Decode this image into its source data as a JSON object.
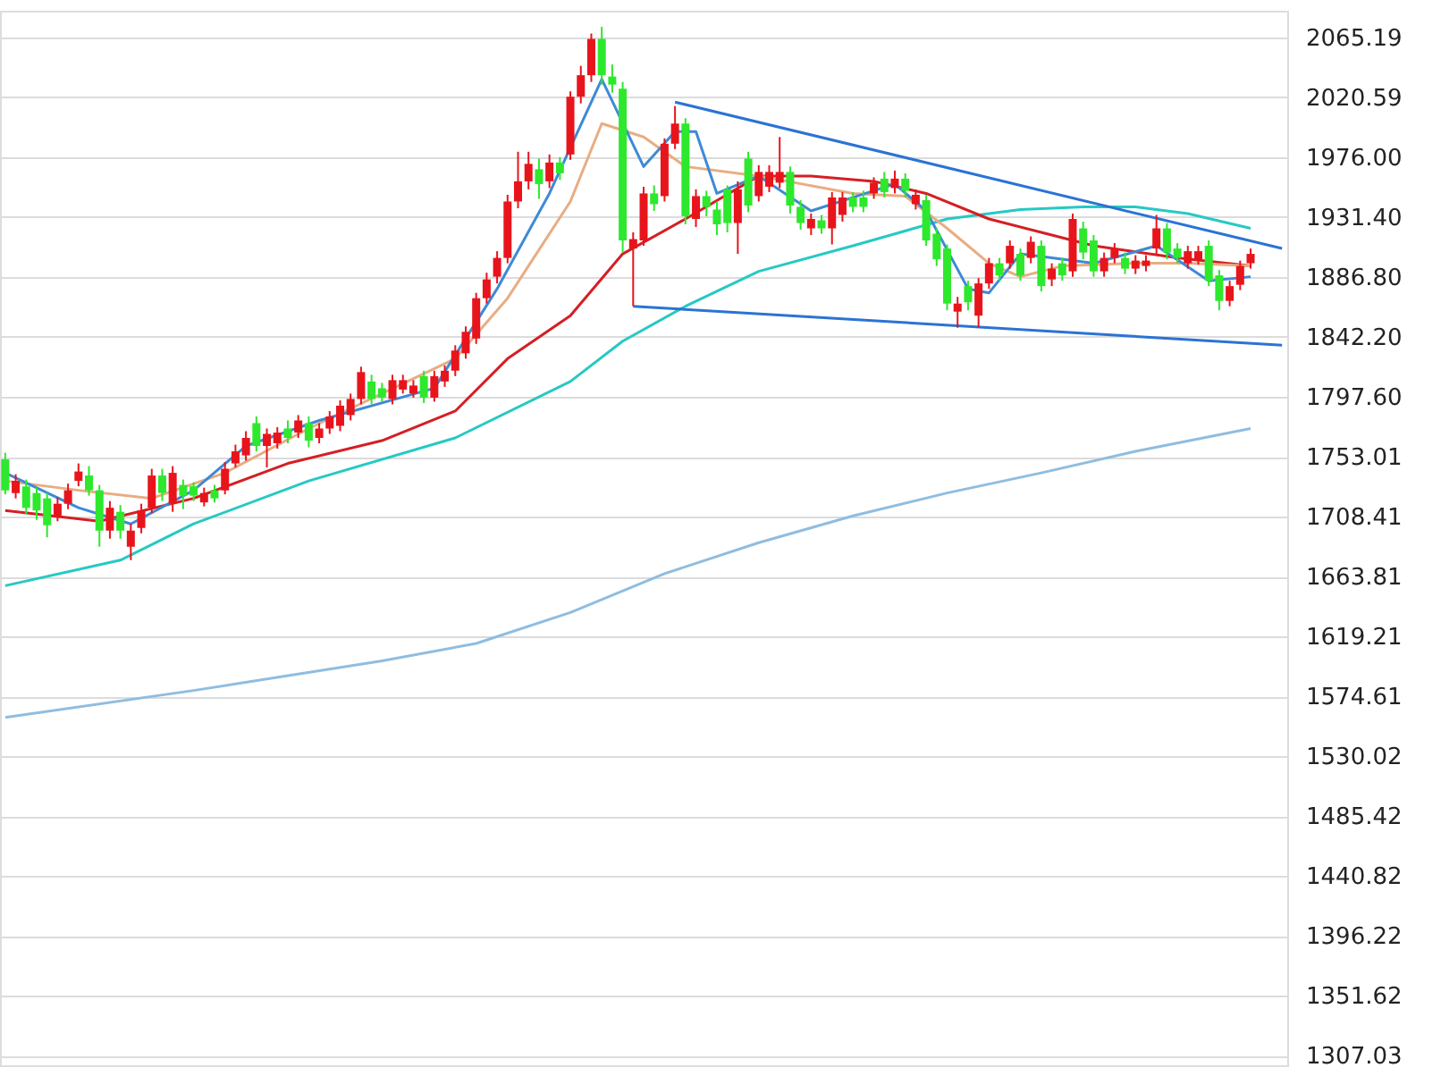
{
  "chart_data": {
    "type": "candlestick",
    "categories": [
      null,
      null,
      null,
      null,
      null,
      null,
      null,
      null,
      null,
      null,
      null,
      null,
      null,
      null,
      null,
      null,
      null,
      null,
      null,
      null,
      null,
      null,
      null,
      null,
      null,
      null,
      null,
      null,
      null,
      null,
      null,
      null,
      null,
      null,
      null,
      null,
      null,
      null,
      null,
      null,
      null,
      null,
      null,
      null,
      null,
      null,
      null,
      null,
      null,
      null,
      null,
      null,
      null,
      null,
      null,
      null,
      null,
      null,
      null,
      null,
      null,
      null,
      null,
      null,
      null,
      null,
      null,
      null,
      null,
      null,
      null,
      null,
      null,
      null,
      null,
      null,
      null,
      null,
      null,
      null,
      null,
      null,
      null,
      null,
      null,
      null,
      null,
      null,
      null,
      null,
      null,
      null,
      null,
      null,
      null,
      null,
      null,
      null,
      null,
      null,
      null,
      null,
      null,
      null,
      null,
      null,
      null,
      null,
      null,
      null,
      null,
      null,
      null,
      null,
      null,
      null,
      null,
      null,
      null,
      null,
      null,
      null,
      null
    ],
    "ohlc": [
      [
        1751,
        1756,
        1725,
        1728
      ],
      [
        1726,
        1740,
        1722,
        1735
      ],
      [
        1731,
        1736,
        1710,
        1715
      ],
      [
        1726,
        1730,
        1706,
        1713
      ],
      [
        1722,
        1726,
        1693,
        1702
      ],
      [
        1709,
        1723,
        1705,
        1718
      ],
      [
        1718,
        1733,
        1714,
        1728
      ],
      [
        1735,
        1748,
        1731,
        1742
      ],
      [
        1739,
        1746,
        1724,
        1728
      ],
      [
        1728,
        1732,
        1686,
        1698
      ],
      [
        1698,
        1720,
        1692,
        1715
      ],
      [
        1712,
        1717,
        1692,
        1698
      ],
      [
        1686,
        1703,
        1676,
        1698
      ],
      [
        1700,
        1718,
        1696,
        1713
      ],
      [
        1715,
        1744,
        1711,
        1739
      ],
      [
        1739,
        1744,
        1720,
        1726
      ],
      [
        1718,
        1746,
        1712,
        1741
      ],
      [
        1732,
        1736,
        1714,
        1724
      ],
      [
        1731,
        1734,
        1720,
        1724
      ],
      [
        1719,
        1730,
        1716,
        1726
      ],
      [
        1728,
        1732,
        1719,
        1722
      ],
      [
        1728,
        1749,
        1725,
        1744
      ],
      [
        1748,
        1762,
        1745,
        1757
      ],
      [
        1754,
        1772,
        1750,
        1767
      ],
      [
        1778,
        1783,
        1757,
        1761
      ],
      [
        1761,
        1774,
        1745,
        1770
      ],
      [
        1763,
        1775,
        1759,
        1771
      ],
      [
        1774,
        1780,
        1763,
        1767
      ],
      [
        1771,
        1784,
        1767,
        1780
      ],
      [
        1778,
        1783,
        1760,
        1765
      ],
      [
        1767,
        1778,
        1763,
        1774
      ],
      [
        1774,
        1787,
        1770,
        1783
      ],
      [
        1776,
        1795,
        1772,
        1791
      ],
      [
        1784,
        1800,
        1780,
        1796
      ],
      [
        1796,
        1820,
        1792,
        1816
      ],
      [
        1809,
        1814,
        1792,
        1796
      ],
      [
        1804,
        1808,
        1794,
        1797
      ],
      [
        1796,
        1814,
        1792,
        1810
      ],
      [
        1803,
        1814,
        1800,
        1810
      ],
      [
        1800,
        1810,
        1797,
        1806
      ],
      [
        1813,
        1817,
        1793,
        1797
      ],
      [
        1797,
        1817,
        1794,
        1813
      ],
      [
        1809,
        1821,
        1805,
        1817
      ],
      [
        1817,
        1836,
        1813,
        1832
      ],
      [
        1830,
        1850,
        1826,
        1846
      ],
      [
        1841,
        1875,
        1837,
        1871
      ],
      [
        1871,
        1890,
        1867,
        1885
      ],
      [
        1887,
        1906,
        1882,
        1901
      ],
      [
        1901,
        1948,
        1897,
        1943
      ],
      [
        1943,
        1980,
        1938,
        1958
      ],
      [
        1958,
        1980,
        1952,
        1971
      ],
      [
        1967,
        1975,
        1945,
        1956
      ],
      [
        1958,
        1978,
        1953,
        1972
      ],
      [
        1972,
        1976,
        1959,
        1964
      ],
      [
        1978,
        2025,
        1974,
        2021
      ],
      [
        2021,
        2044,
        2016,
        2037
      ],
      [
        2037,
        2068,
        2032,
        2064
      ],
      [
        2064,
        2073,
        2030,
        2037
      ],
      [
        2036,
        2045,
        2024,
        2030
      ],
      [
        2027,
        2032,
        1905,
        1914
      ],
      [
        1908,
        1920,
        1865,
        1915
      ],
      [
        1914,
        1954,
        1910,
        1949
      ],
      [
        1949,
        1955,
        1936,
        1941
      ],
      [
        1947,
        1990,
        1943,
        1986
      ],
      [
        1986,
        2014,
        1982,
        2001
      ],
      [
        2001,
        2005,
        1926,
        1932
      ],
      [
        1930,
        1952,
        1924,
        1947
      ],
      [
        1947,
        1951,
        1932,
        1939
      ],
      [
        1937,
        1943,
        1918,
        1926
      ],
      [
        1952,
        1955,
        1920,
        1927
      ],
      [
        1927,
        1958,
        1904,
        1952
      ],
      [
        1975,
        1980,
        1935,
        1940
      ],
      [
        1947,
        1970,
        1943,
        1965
      ],
      [
        1954,
        1970,
        1950,
        1965
      ],
      [
        1957,
        1991,
        1953,
        1965
      ],
      [
        1965,
        1969,
        1934,
        1940
      ],
      [
        1939,
        1944,
        1922,
        1927
      ],
      [
        1923,
        1934,
        1918,
        1930
      ],
      [
        1929,
        1933,
        1919,
        1923
      ],
      [
        1923,
        1950,
        1911,
        1946
      ],
      [
        1933,
        1950,
        1928,
        1946
      ],
      [
        1946,
        1950,
        1935,
        1939
      ],
      [
        1946,
        1951,
        1935,
        1939
      ],
      [
        1949,
        1961,
        1945,
        1957
      ],
      [
        1960,
        1965,
        1946,
        1950
      ],
      [
        1953,
        1966,
        1949,
        1960
      ],
      [
        1960,
        1964,
        1946,
        1951
      ],
      [
        1941,
        1952,
        1937,
        1948
      ],
      [
        1944,
        1948,
        1910,
        1914
      ],
      [
        1919,
        1923,
        1895,
        1900
      ],
      [
        1908,
        1911,
        1862,
        1867
      ],
      [
        1861,
        1872,
        1849,
        1867
      ],
      [
        1880,
        1884,
        1862,
        1868
      ],
      [
        1858,
        1886,
        1849,
        1882
      ],
      [
        1882,
        1901,
        1878,
        1897
      ],
      [
        1897,
        1901,
        1884,
        1888
      ],
      [
        1897,
        1914,
        1893,
        1910
      ],
      [
        1904,
        1908,
        1884,
        1888
      ],
      [
        1901,
        1917,
        1897,
        1913
      ],
      [
        1910,
        1914,
        1876,
        1880
      ],
      [
        1885,
        1897,
        1880,
        1893
      ],
      [
        1897,
        1901,
        1884,
        1888
      ],
      [
        1891,
        1934,
        1887,
        1930
      ],
      [
        1923,
        1928,
        1900,
        1905
      ],
      [
        1914,
        1918,
        1887,
        1891
      ],
      [
        1891,
        1905,
        1887,
        1901
      ],
      [
        1901,
        1912,
        1897,
        1908
      ],
      [
        1901,
        1905,
        1889,
        1893
      ],
      [
        1893,
        1903,
        1889,
        1899
      ],
      [
        1895,
        1903,
        1891,
        1899
      ],
      [
        1908,
        1933,
        1904,
        1923
      ],
      [
        1923,
        1927,
        1900,
        1905
      ],
      [
        1908,
        1912,
        1897,
        1901
      ],
      [
        1897,
        1910,
        1893,
        1906
      ],
      [
        1900,
        1910,
        1896,
        1906
      ],
      [
        1910,
        1914,
        1880,
        1884
      ],
      [
        1888,
        1892,
        1862,
        1869
      ],
      [
        1869,
        1884,
        1865,
        1880
      ],
      [
        1881,
        1899,
        1877,
        1895
      ],
      [
        1897,
        1908,
        1893,
        1904
      ],
      null,
      null,
      null
    ],
    "colors": [
      "#2de82d",
      "#e8141c",
      "#2de82d",
      "#2de82d",
      "#2de82d",
      "#e8141c",
      "#e8141c",
      "#e8141c",
      "#2de82d",
      "#2de82d",
      "#e8141c",
      "#2de82d",
      "#e8141c",
      "#e8141c",
      "#e8141c",
      "#2de82d",
      "#e8141c",
      "#2de82d",
      "#2de82d",
      "#e8141c",
      "#2de82d",
      "#e8141c",
      "#e8141c",
      "#e8141c",
      "#2de82d",
      "#e8141c",
      "#e8141c",
      "#2de82d",
      "#e8141c",
      "#2de82d",
      "#e8141c",
      "#e8141c",
      "#e8141c",
      "#e8141c",
      "#e8141c",
      "#2de82d",
      "#2de82d",
      "#e8141c",
      "#e8141c",
      "#e8141c",
      "#2de82d",
      "#e8141c",
      "#e8141c",
      "#e8141c",
      "#e8141c",
      "#e8141c",
      "#e8141c",
      "#e8141c",
      "#e8141c",
      "#e8141c",
      "#e8141c",
      "#2de82d",
      "#e8141c",
      "#2de82d",
      "#e8141c",
      "#e8141c",
      "#e8141c",
      "#2de82d",
      "#2de82d",
      "#2de82d",
      "#e8141c",
      "#e8141c",
      "#2de82d",
      "#e8141c",
      "#e8141c",
      "#2de82d",
      "#e8141c",
      "#2de82d",
      "#2de82d",
      "#2de82d",
      "#e8141c",
      "#2de82d",
      "#e8141c",
      "#e8141c",
      "#e8141c",
      "#2de82d",
      "#2de82d",
      "#e8141c",
      "#2de82d",
      "#e8141c",
      "#e8141c",
      "#2de82d",
      "#2de82d",
      "#e8141c",
      "#2de82d",
      "#e8141c",
      "#2de82d",
      "#e8141c",
      "#2de82d",
      "#2de82d",
      "#2de82d",
      "#e8141c",
      "#2de82d",
      "#e8141c",
      "#e8141c",
      "#2de82d",
      "#e8141c",
      "#2de82d",
      "#e8141c",
      "#2de82d",
      "#e8141c",
      "#2de82d",
      "#e8141c",
      "#2de82d",
      "#2de82d",
      "#e8141c",
      "#e8141c",
      "#2de82d",
      "#e8141c",
      "#e8141c",
      "#e8141c",
      "#2de82d",
      "#2de82d",
      "#e8141c",
      "#e8141c",
      "#2de82d",
      "#2de82d",
      "#e8141c",
      "#e8141c",
      "#e8141c",
      null,
      null,
      null
    ],
    "series": [
      {
        "type": "line",
        "color": "#8fbde0",
        "values": [
          1559,
          null,
          null,
          null,
          null,
          null,
          null,
          null,
          null,
          null,
          null,
          null,
          null,
          null,
          null,
          null,
          null,
          null,
          1579,
          null,
          null,
          null,
          null,
          null,
          null,
          null,
          null,
          null,
          null,
          null,
          null,
          null,
          null,
          null,
          null,
          null,
          1601,
          null,
          null,
          null,
          null,
          null,
          null,
          null,
          null,
          1614,
          null,
          null,
          null,
          null,
          null,
          null,
          null,
          null,
          1637,
          null,
          null,
          null,
          null,
          null,
          null,
          null,
          null,
          1666,
          null,
          null,
          null,
          null,
          null,
          null,
          null,
          null,
          1689,
          null,
          null,
          null,
          null,
          null,
          null,
          null,
          null,
          1709,
          null,
          null,
          null,
          null,
          null,
          null,
          null,
          null,
          1726,
          null,
          null,
          null,
          null,
          null,
          null,
          null,
          null,
          1741,
          null,
          null,
          null,
          null,
          null,
          null,
          null,
          null,
          1757,
          null,
          null,
          null,
          null,
          null,
          null,
          null,
          null,
          null,
          null,
          1774,
          null,
          null,
          null
        ]
      },
      {
        "type": "line",
        "color": "#26c9c4",
        "values": [
          1657,
          null,
          null,
          null,
          null,
          null,
          null,
          null,
          null,
          null,
          null,
          1676,
          null,
          null,
          null,
          null,
          null,
          null,
          1703,
          null,
          null,
          null,
          null,
          null,
          null,
          null,
          null,
          null,
          null,
          1735,
          null,
          null,
          null,
          null,
          null,
          null,
          null,
          null,
          null,
          null,
          null,
          null,
          null,
          1767,
          null,
          null,
          null,
          null,
          null,
          null,
          null,
          null,
          null,
          null,
          1809,
          null,
          null,
          null,
          null,
          1839,
          null,
          null,
          null,
          null,
          null,
          1865,
          null,
          null,
          null,
          null,
          null,
          null,
          1891,
          null,
          null,
          null,
          null,
          null,
          null,
          null,
          null,
          1910,
          null,
          null,
          null,
          null,
          null,
          null,
          null,
          null,
          1930,
          null,
          null,
          null,
          null,
          null,
          null,
          1937,
          null,
          null,
          null,
          null,
          null,
          1939,
          null,
          null,
          null,
          null,
          1939,
          null,
          null,
          null,
          null,
          1934,
          null,
          null,
          null,
          null,
          null,
          1923,
          null,
          null,
          null
        ]
      },
      {
        "type": "line",
        "color": "#d41f24",
        "values": [
          1713,
          null,
          null,
          null,
          null,
          null,
          null,
          null,
          null,
          1705,
          null,
          null,
          null,
          null,
          null,
          null,
          null,
          null,
          1722,
          null,
          null,
          null,
          null,
          null,
          null,
          null,
          null,
          1748,
          null,
          null,
          null,
          null,
          null,
          null,
          null,
          null,
          1765,
          null,
          null,
          null,
          null,
          null,
          null,
          1787,
          null,
          null,
          null,
          null,
          1826,
          null,
          null,
          null,
          null,
          null,
          1858,
          null,
          null,
          null,
          null,
          1904,
          null,
          null,
          null,
          null,
          null,
          1930,
          null,
          null,
          null,
          null,
          null,
          null,
          1962,
          null,
          null,
          null,
          null,
          1962,
          null,
          null,
          null,
          null,
          null,
          1958,
          null,
          null,
          null,
          null,
          1949,
          null,
          null,
          null,
          null,
          null,
          1930,
          null,
          null,
          null,
          null,
          1920,
          null,
          null,
          null,
          null,
          1910,
          null,
          null,
          null,
          null,
          null,
          null,
          null,
          1901,
          null,
          null,
          null,
          null,
          null,
          null,
          1895,
          null,
          null,
          null
        ]
      },
      {
        "type": "line",
        "color": "#e8ad82",
        "values": [
          1735,
          null,
          null,
          null,
          null,
          null,
          null,
          1728,
          null,
          null,
          null,
          null,
          null,
          null,
          1722,
          null,
          null,
          null,
          null,
          null,
          null,
          1741,
          null,
          null,
          null,
          null,
          null,
          null,
          null,
          1774,
          null,
          null,
          null,
          null,
          null,
          null,
          1800,
          null,
          null,
          null,
          null,
          null,
          null,
          1826,
          null,
          null,
          null,
          null,
          1871,
          null,
          null,
          null,
          null,
          null,
          1943,
          null,
          null,
          2001,
          null,
          null,
          null,
          1991,
          null,
          null,
          null,
          1969,
          null,
          null,
          null,
          null,
          null,
          null,
          1962,
          null,
          null,
          null,
          null,
          null,
          null,
          null,
          null,
          1949,
          null,
          null,
          null,
          null,
          1947,
          null,
          null,
          null,
          1923,
          null,
          null,
          null,
          1897,
          null,
          null,
          1887,
          null,
          null,
          null,
          1895,
          null,
          null,
          null,
          null,
          null,
          null,
          1897,
          null,
          null,
          null,
          null,
          1897,
          null,
          null,
          null,
          null,
          null,
          1895,
          null,
          null,
          null
        ]
      },
      {
        "type": "line",
        "color": "#3d8ad6",
        "values": [
          1741,
          null,
          null,
          null,
          null,
          null,
          null,
          1715,
          null,
          null,
          null,
          null,
          1703,
          null,
          null,
          null,
          null,
          null,
          1728,
          null,
          null,
          null,
          null,
          1761,
          null,
          null,
          null,
          null,
          null,
          null,
          1780,
          null,
          null,
          null,
          null,
          null,
          null,
          null,
          null,
          null,
          null,
          1804,
          null,
          null,
          null,
          null,
          null,
          1878,
          null,
          null,
          null,
          null,
          1949,
          null,
          null,
          null,
          null,
          2034,
          null,
          null,
          null,
          1969,
          null,
          null,
          1995,
          null,
          1995,
          null,
          1949,
          null,
          null,
          null,
          1962,
          null,
          null,
          null,
          null,
          1936,
          null,
          null,
          null,
          null,
          null,
          null,
          null,
          1956,
          null,
          null,
          1936,
          null,
          null,
          null,
          1878,
          null,
          1875,
          null,
          null,
          1904,
          null,
          null,
          null,
          null,
          null,
          null,
          1897,
          null,
          null,
          null,
          null,
          null,
          1910,
          null,
          null,
          null,
          null,
          1884,
          null,
          null,
          null,
          1887,
          null,
          null,
          null
        ]
      },
      {
        "type": "line",
        "color": "#2b73d4",
        "values": [
          null,
          null,
          null,
          null,
          null,
          null,
          null,
          null,
          null,
          null,
          null,
          null,
          null,
          null,
          null,
          null,
          null,
          null,
          null,
          null,
          null,
          null,
          null,
          null,
          null,
          null,
          null,
          null,
          null,
          null,
          null,
          null,
          null,
          null,
          null,
          null,
          null,
          null,
          null,
          null,
          null,
          null,
          null,
          null,
          null,
          null,
          null,
          null,
          null,
          null,
          null,
          null,
          null,
          null,
          null,
          null,
          null,
          null,
          null,
          null,
          null,
          null,
          null,
          null,
          2017,
          null,
          null,
          null,
          null,
          null,
          null,
          null,
          null,
          null,
          null,
          null,
          null,
          null,
          null,
          null,
          null,
          null,
          null,
          null,
          null,
          null,
          null,
          null,
          null,
          null,
          null,
          null,
          null,
          null,
          null,
          null,
          null,
          null,
          null,
          null,
          null,
          null,
          null,
          null,
          null,
          null,
          null,
          null,
          null,
          null,
          null,
          null,
          null,
          null,
          null,
          null,
          null,
          null,
          null,
          null,
          null,
          null,
          1908
        ]
      },
      {
        "type": "line",
        "color": "#2b73d4",
        "values": [
          null,
          null,
          null,
          null,
          null,
          null,
          null,
          null,
          null,
          null,
          null,
          null,
          null,
          null,
          null,
          null,
          null,
          null,
          null,
          null,
          null,
          null,
          null,
          null,
          null,
          null,
          null,
          null,
          null,
          null,
          null,
          null,
          null,
          null,
          null,
          null,
          null,
          null,
          null,
          null,
          null,
          null,
          null,
          null,
          null,
          null,
          null,
          null,
          null,
          null,
          null,
          null,
          null,
          null,
          null,
          null,
          null,
          null,
          null,
          null,
          1865,
          null,
          null,
          null,
          null,
          null,
          null,
          null,
          null,
          null,
          null,
          null,
          null,
          null,
          null,
          null,
          null,
          null,
          null,
          null,
          null,
          null,
          null,
          null,
          null,
          null,
          null,
          null,
          null,
          null,
          null,
          null,
          null,
          null,
          null,
          null,
          null,
          null,
          null,
          null,
          null,
          null,
          null,
          null,
          null,
          null,
          null,
          null,
          null,
          null,
          null,
          null,
          null,
          null,
          null,
          null,
          null,
          null,
          null,
          null,
          null,
          null,
          1836
        ]
      }
    ],
    "ylim": [
      1300,
      2085
    ],
    "yticks": [
      {
        "value": 2065.19,
        "label": "2065.19"
      },
      {
        "value": 2020.59,
        "label": "2020.59"
      },
      {
        "value": 1976.0,
        "label": "1976.00"
      },
      {
        "value": 1931.4,
        "label": "1931.40"
      },
      {
        "value": 1886.8,
        "label": "1886.80"
      },
      {
        "value": 1842.2,
        "label": "1842.20"
      },
      {
        "value": 1797.6,
        "label": "1797.60"
      },
      {
        "value": 1753.01,
        "label": "1753.01"
      },
      {
        "value": 1708.41,
        "label": "1708.41"
      },
      {
        "value": 1663.81,
        "label": "1663.81"
      },
      {
        "value": 1619.21,
        "label": "1619.21"
      },
      {
        "value": 1574.61,
        "label": "1574.61"
      },
      {
        "value": 1530.02,
        "label": "1530.02"
      },
      {
        "value": 1485.42,
        "label": "1485.42"
      },
      {
        "value": 1440.82,
        "label": "1440.82"
      },
      {
        "value": 1396.22,
        "label": "1396.22"
      },
      {
        "value": 1351.62,
        "label": "1351.62"
      },
      {
        "value": 1307.03,
        "label": "1307.03"
      }
    ],
    "grid": "y",
    "tick_labels": "y"
  }
}
